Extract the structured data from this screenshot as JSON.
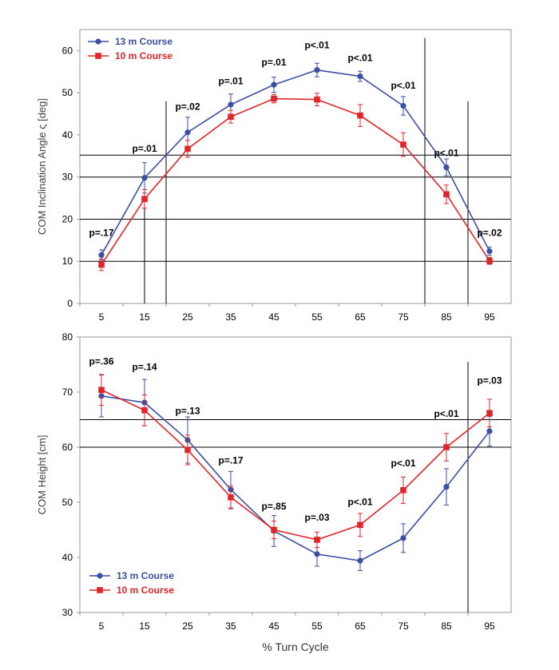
{
  "colors": {
    "blue": "#3b4fa3",
    "red": "#e1262b",
    "axis": "#9a9a9a",
    "ref": "#000000"
  },
  "chart_data": [
    {
      "type": "line",
      "title": "",
      "xlabel": "",
      "ylabel": "COM Inclination Angle ς [deg]",
      "categories": [
        "5",
        "15",
        "25",
        "35",
        "45",
        "55",
        "65",
        "75",
        "85",
        "95"
      ],
      "ylim": [
        0,
        65
      ],
      "yticks": [
        0,
        10,
        20,
        30,
        40,
        50,
        60
      ],
      "series": [
        {
          "name": "13 m Course",
          "color": "blue",
          "marker": "circle",
          "values": [
            11.5,
            29.8,
            40.6,
            47.2,
            51.9,
            55.4,
            53.9,
            46.9,
            32.3,
            12.4
          ],
          "errors": [
            1.2,
            3.6,
            3.6,
            2.5,
            1.8,
            1.6,
            1.2,
            2.2,
            2.0,
            1.0
          ]
        },
        {
          "name": "10 m Course",
          "color": "red",
          "marker": "square",
          "values": [
            9.2,
            24.8,
            36.7,
            44.3,
            48.6,
            48.4,
            44.6,
            37.7,
            25.9,
            10.1
          ],
          "errors": [
            1.4,
            2.2,
            2.0,
            1.5,
            1.0,
            1.5,
            2.6,
            2.8,
            2.2,
            0.8
          ]
        }
      ],
      "annotations": [
        "p=.17",
        "p=.01",
        "p=.02",
        "p=.01",
        "p=.01",
        "p<.01",
        "p<.01",
        "p<.01",
        "p<.01",
        "p=.02"
      ],
      "annotation_y": [
        16,
        36,
        46,
        52,
        56.5,
        60.5,
        57.5,
        51,
        35,
        16
      ],
      "hlines": [
        10,
        20,
        30,
        35.2
      ],
      "vlines": [
        15,
        20,
        80,
        90
      ]
    },
    {
      "type": "line",
      "title": "",
      "xlabel": "% Turn Cycle",
      "ylabel": "COM Height [cm]",
      "categories": [
        "5",
        "15",
        "25",
        "35",
        "45",
        "55",
        "65",
        "75",
        "85",
        "95"
      ],
      "ylim": [
        30,
        80
      ],
      "yticks": [
        30,
        40,
        50,
        60,
        70,
        80
      ],
      "series": [
        {
          "name": "13 m Course",
          "color": "blue",
          "marker": "circle",
          "values": [
            69.3,
            68.1,
            61.3,
            52.3,
            44.8,
            40.6,
            39.4,
            43.5,
            52.8,
            62.9
          ],
          "errors": [
            3.8,
            4.2,
            4.2,
            3.3,
            2.8,
            2.2,
            1.8,
            2.6,
            3.3,
            2.7
          ]
        },
        {
          "name": "10 m Course",
          "color": "red",
          "marker": "square",
          "values": [
            70.4,
            66.7,
            59.5,
            50.9,
            45.0,
            43.2,
            45.9,
            52.2,
            60.0,
            66.2
          ],
          "errors": [
            2.8,
            2.8,
            2.7,
            2.1,
            1.6,
            1.4,
            2.1,
            2.4,
            2.5,
            2.5
          ]
        }
      ],
      "annotations": [
        "p=.36",
        "p=.14",
        "p=.13",
        "p=.17",
        "p=.85",
        "p=.03",
        "p<.01",
        "p<.01",
        "p<.01",
        "p=.03"
      ],
      "annotation_y": [
        75,
        74,
        66,
        57,
        48.7,
        46.7,
        49.5,
        56.5,
        65.5,
        71.5
      ],
      "hlines": [
        60,
        65
      ],
      "vlines": [
        90
      ]
    }
  ]
}
